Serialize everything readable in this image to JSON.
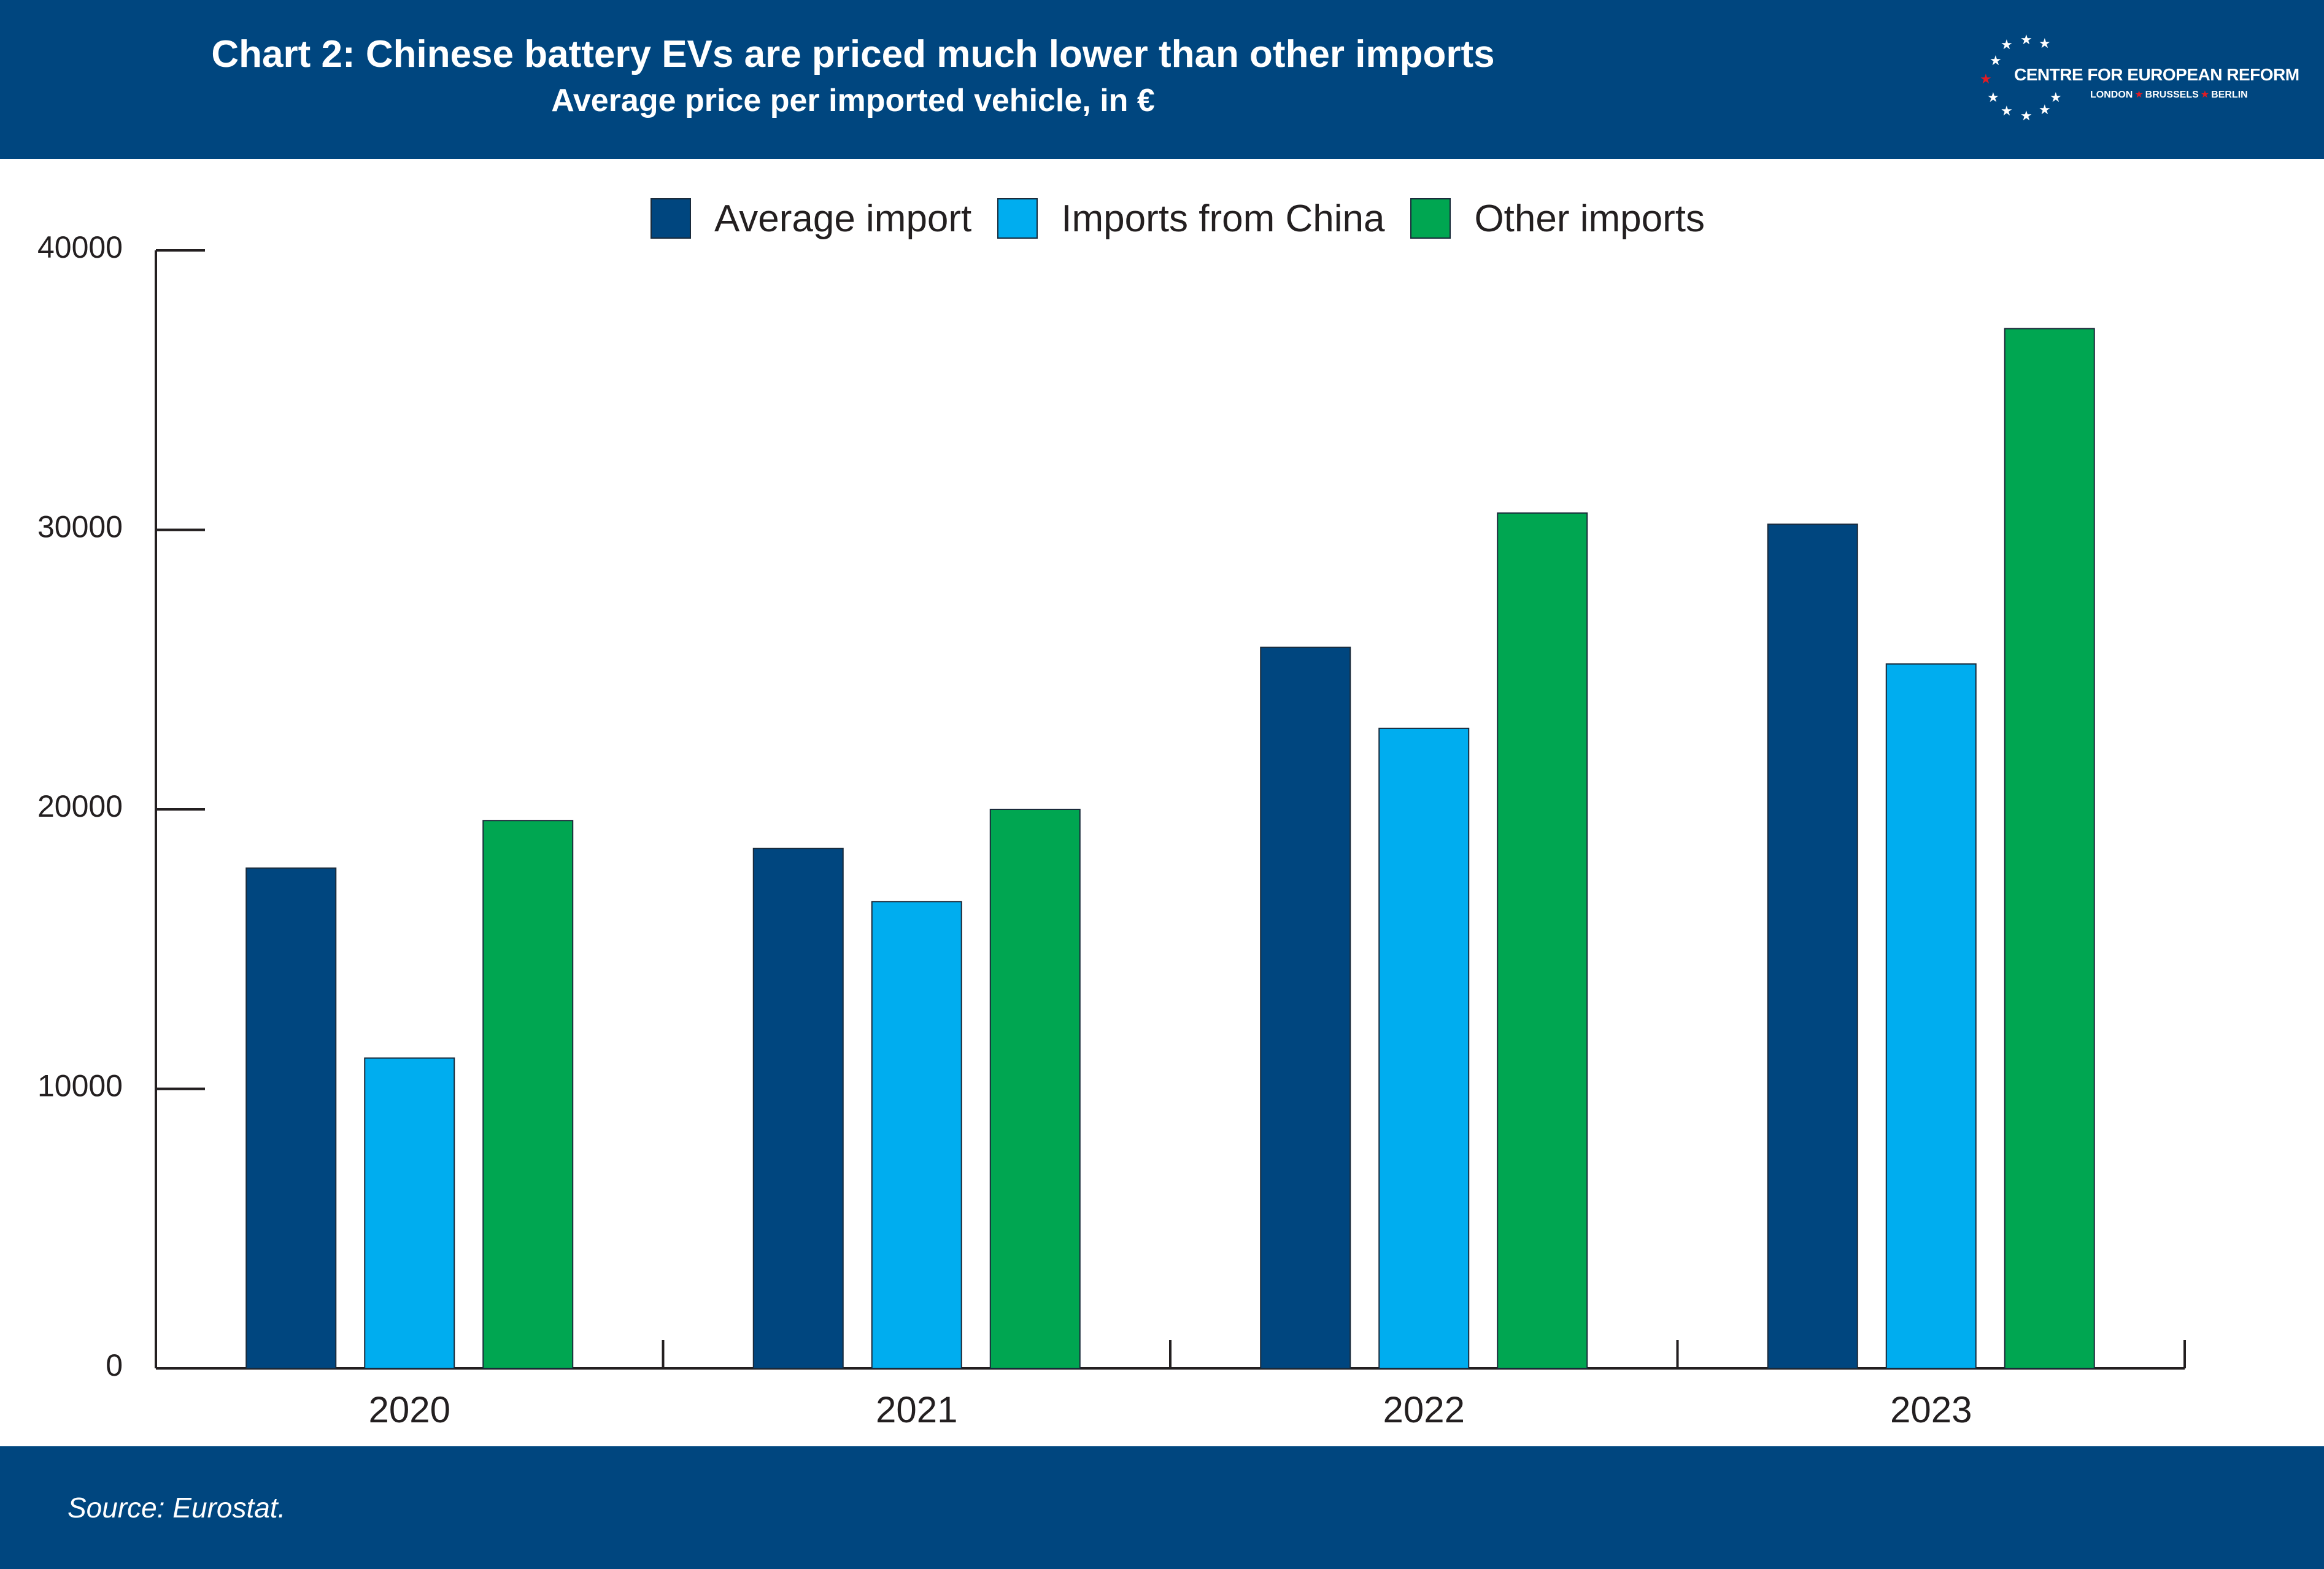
{
  "header": {
    "title": "Chart 2: Chinese battery EVs are priced much lower than other imports",
    "subtitle": "Average price per imported vehicle, in €"
  },
  "logo": {
    "name": "CENTRE FOR EUROPEAN REFORM",
    "cities": [
      "LONDON",
      "BRUSSELS",
      "BERLIN"
    ]
  },
  "footer": {
    "source": "Source: Eurostat."
  },
  "colors": {
    "band": "#00467f",
    "average_import": "#00467f",
    "imports_from_china": "#00adef",
    "other_imports": "#00a651"
  },
  "chart_data": {
    "type": "bar",
    "title": "Chart 2: Chinese battery EVs are priced much lower than other imports",
    "subtitle": "Average price per imported vehicle, in €",
    "categories": [
      "2020",
      "2021",
      "2022",
      "2023"
    ],
    "series": [
      {
        "name": "Average import",
        "color": "#00467f",
        "values": [
          17900,
          18600,
          25800,
          30200
        ]
      },
      {
        "name": "Imports from China",
        "color": "#00adef",
        "values": [
          11100,
          16700,
          22900,
          25200
        ]
      },
      {
        "name": "Other imports",
        "color": "#00a651",
        "values": [
          19600,
          20000,
          30600,
          37200
        ]
      }
    ],
    "ylim": [
      0,
      40000
    ],
    "yticks": [
      "0",
      "10000",
      "20000",
      "30000",
      "40000"
    ],
    "grid": false,
    "legend": "top-center"
  }
}
